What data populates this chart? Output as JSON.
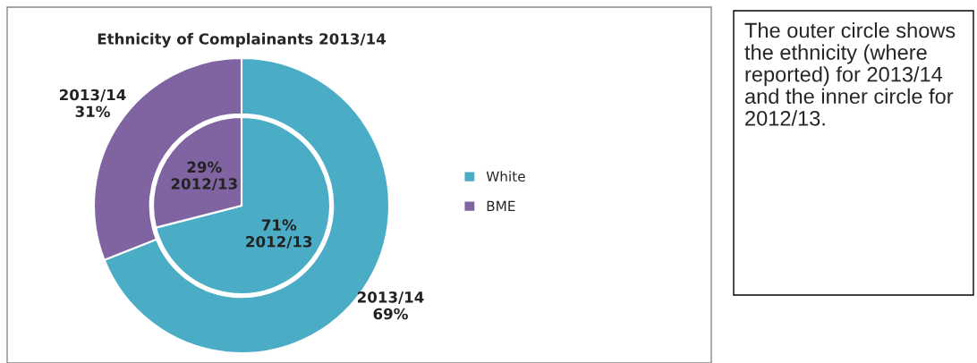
{
  "chart_data": {
    "type": "donut",
    "title": "Ethnicity of Complainants 2013/14",
    "categories": [
      "White",
      "BME"
    ],
    "colors": [
      "#4bacc6",
      "#8064a2"
    ],
    "series": [
      {
        "name": "2013/14",
        "type": "donut",
        "values": [
          69,
          31
        ],
        "value_labels": [
          "69%",
          "31%"
        ]
      },
      {
        "name": "2012/13",
        "type": "pie",
        "values": [
          71,
          29
        ],
        "value_labels": [
          "71%",
          "29%"
        ]
      }
    ],
    "legend": "right",
    "annotations": [
      "The outer circle shows the ethnicity (where reported) for 2013/14 and the inner circle for 2012/13."
    ]
  }
}
